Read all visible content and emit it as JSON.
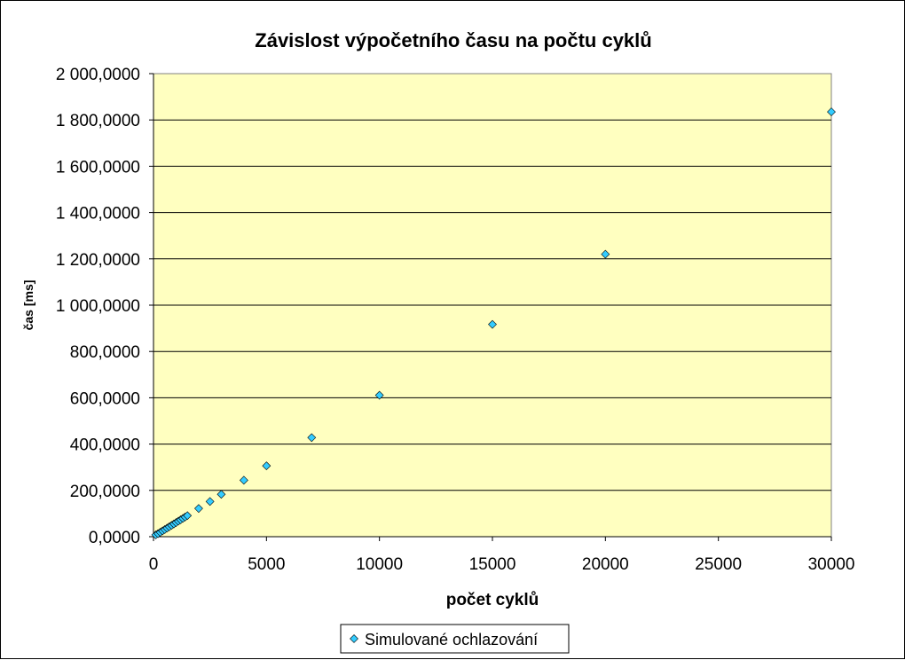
{
  "chart_data": {
    "type": "scatter",
    "title": "Závislost výpočetního času na počtu cyklů",
    "xlabel": "počet cyklů",
    "ylabel": "čas [ms]",
    "xlim": [
      0,
      30000
    ],
    "ylim": [
      0,
      2000
    ],
    "x_ticks": [
      "0",
      "5000",
      "10000",
      "15000",
      "20000",
      "25000",
      "30000"
    ],
    "y_ticks": [
      "0,0000",
      "200,0000",
      "400,0000",
      "600,0000",
      "800,0000",
      "1 000,0000",
      "1 200,0000",
      "1 400,0000",
      "1 600,0000",
      "1 800,0000",
      "2 000,0000"
    ],
    "grid": "horizontal",
    "legend_position": "bottom",
    "plot_background": "#ffffc0",
    "marker_color": "#33ccff",
    "series": [
      {
        "name": "Simulované ochlazování",
        "marker": "diamond",
        "x": [
          100,
          200,
          300,
          400,
          500,
          600,
          700,
          800,
          900,
          1000,
          1100,
          1200,
          1300,
          1400,
          1500,
          2000,
          2500,
          3000,
          4000,
          5000,
          7000,
          10000,
          15000,
          20000,
          30000
        ],
        "y": [
          8,
          13,
          19,
          25,
          31,
          37,
          43,
          49,
          55,
          61,
          67,
          73,
          79,
          85,
          91,
          122,
          152,
          183,
          244,
          306,
          428,
          611,
          917,
          1220,
          1835
        ]
      }
    ]
  }
}
